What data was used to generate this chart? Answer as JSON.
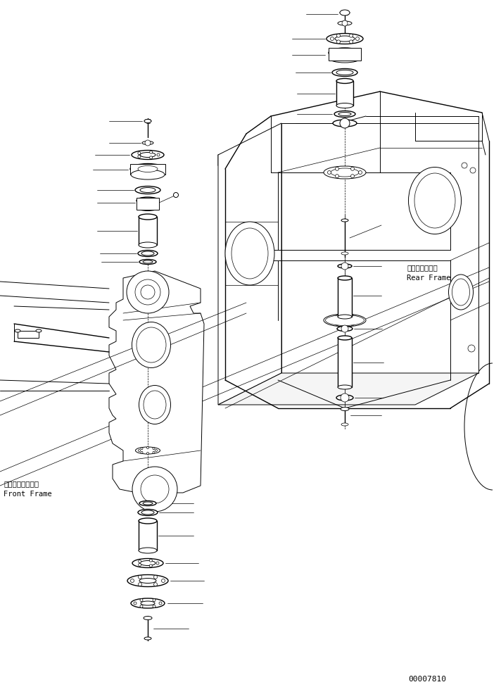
{
  "background_color": "#ffffff",
  "line_color": "#000000",
  "part_number": "00007810",
  "front_frame_label_jp": "フロントフレーム",
  "front_frame_label_en": "Front Frame",
  "rear_frame_label_jp": "リヤーフレーム",
  "rear_frame_label_en": "Rear Frame",
  "rear_frame_label_hyphen": "リヤーフレーム"
}
